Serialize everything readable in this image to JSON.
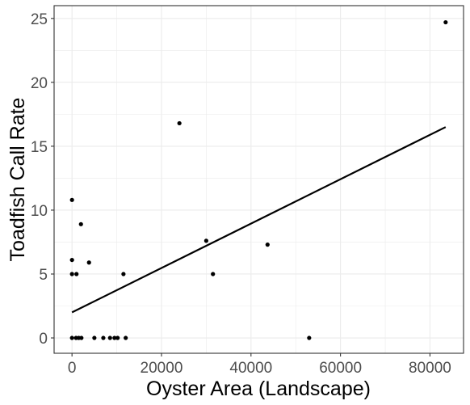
{
  "chart_data": {
    "type": "scatter",
    "xlabel": "Oyster Area (Landscape)",
    "ylabel": "Toadfish Call Rate",
    "xlim": [
      -4000,
      87500
    ],
    "ylim": [
      -1.2,
      26
    ],
    "x_ticks": [
      0,
      20000,
      40000,
      60000,
      80000
    ],
    "y_ticks": [
      0,
      5,
      10,
      15,
      20,
      25
    ],
    "grid": true,
    "colors": {
      "points": "#000000",
      "fit_line": "#000000",
      "grid": "#ebebeb",
      "panel_border": "#333333"
    },
    "points": [
      {
        "x": 0,
        "y": 10.8
      },
      {
        "x": 0,
        "y": 6.1
      },
      {
        "x": 0,
        "y": 5.0
      },
      {
        "x": 1000,
        "y": 5.0
      },
      {
        "x": 2000,
        "y": 8.9
      },
      {
        "x": 3800,
        "y": 5.9
      },
      {
        "x": 11500,
        "y": 5.0
      },
      {
        "x": 24000,
        "y": 16.8
      },
      {
        "x": 30000,
        "y": 7.6
      },
      {
        "x": 31500,
        "y": 5.0
      },
      {
        "x": 43700,
        "y": 7.3
      },
      {
        "x": 53000,
        "y": 0
      },
      {
        "x": 83500,
        "y": 24.7
      },
      {
        "x": 0,
        "y": 0
      },
      {
        "x": 900,
        "y": 0
      },
      {
        "x": 1500,
        "y": 0
      },
      {
        "x": 2100,
        "y": 0
      },
      {
        "x": 5000,
        "y": 0
      },
      {
        "x": 7000,
        "y": 0
      },
      {
        "x": 8500,
        "y": 0
      },
      {
        "x": 9500,
        "y": 0
      },
      {
        "x": 10200,
        "y": 0
      },
      {
        "x": 12000,
        "y": 0
      }
    ],
    "fit_line": {
      "x": [
        0,
        83500
      ],
      "y": [
        2.0,
        16.5
      ]
    }
  }
}
